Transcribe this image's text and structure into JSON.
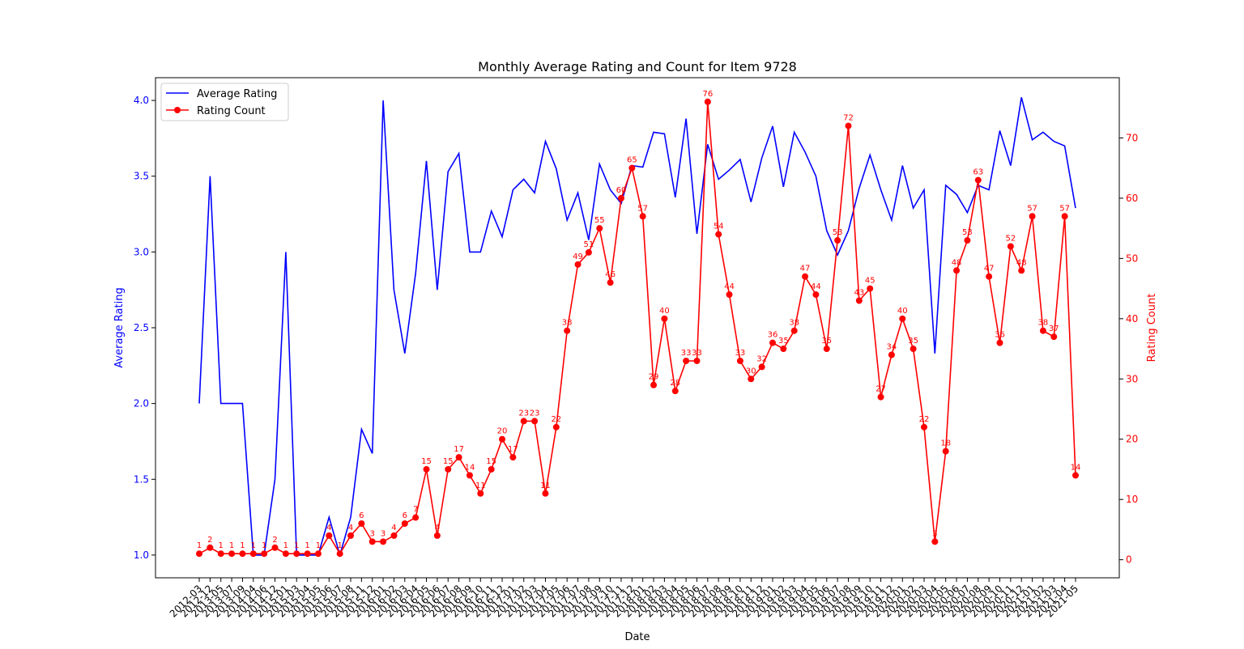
{
  "chart_data": {
    "type": "line",
    "title": "Monthly Average Rating and Count for Item 9728",
    "xlabel": "Date",
    "ylabel_left": "Average Rating",
    "ylabel_right": "Rating Count",
    "y_left_ticks": [
      1.0,
      1.5,
      2.0,
      2.5,
      3.0,
      3.5,
      4.0
    ],
    "y_right_ticks": [
      0,
      10,
      20,
      30,
      40,
      50,
      60,
      70
    ],
    "y_left_range": [
      0.85,
      4.15
    ],
    "y_right_range": [
      -3,
      80
    ],
    "grid": false,
    "legend_position": "upper-left",
    "colors": {
      "rating": "#0000ff",
      "count": "#ff0000"
    },
    "x": [
      "2012-03",
      "2012-12",
      "2013-05",
      "2013-07",
      "2013-09",
      "2014-04",
      "2014-06",
      "2014-12",
      "2015-01",
      "2015-03",
      "2015-04",
      "2015-05",
      "2015-06",
      "2015-07",
      "2015-08",
      "2015-11",
      "2015-12",
      "2016-01",
      "2016-02",
      "2016-03",
      "2016-04",
      "2016-05",
      "2016-06",
      "2016-07",
      "2016-08",
      "2016-09",
      "2016-10",
      "2016-11",
      "2016-12",
      "2017-01",
      "2017-02",
      "2017-03",
      "2017-04",
      "2017-05",
      "2017-06",
      "2017-07",
      "2017-08",
      "2017-09",
      "2017-10",
      "2017-11",
      "2017-12",
      "2018-01",
      "2018-02",
      "2018-03",
      "2018-04",
      "2018-05",
      "2018-06",
      "2018-07",
      "2018-08",
      "2018-09",
      "2018-10",
      "2018-11",
      "2018-12",
      "2019-01",
      "2019-02",
      "2019-03",
      "2019-04",
      "2019-05",
      "2019-06",
      "2019-07",
      "2019-08",
      "2019-09",
      "2019-10",
      "2019-11",
      "2019-12",
      "2020-01",
      "2020-02",
      "2020-03",
      "2020-04",
      "2020-05",
      "2020-06",
      "2020-07",
      "2020-08",
      "2020-09",
      "2020-10",
      "2020-11",
      "2020-12",
      "2021-01",
      "2021-02",
      "2021-03",
      "2021-04",
      "2021-05"
    ],
    "series": [
      {
        "name": "Average Rating",
        "axis": "left",
        "values": [
          2.0,
          3.5,
          2.0,
          2.0,
          2.0,
          1.0,
          1.0,
          1.5,
          3.0,
          1.0,
          1.0,
          1.0,
          1.25,
          1.0,
          1.25,
          1.83,
          1.67,
          4.0,
          2.75,
          2.33,
          2.86,
          3.6,
          2.75,
          3.53,
          3.65,
          3.0,
          3.0,
          3.27,
          3.1,
          3.41,
          3.48,
          3.39,
          3.73,
          3.55,
          3.21,
          3.39,
          3.08,
          3.58,
          3.41,
          3.32,
          3.57,
          3.56,
          3.79,
          3.78,
          3.36,
          3.88,
          3.12,
          3.71,
          3.48,
          3.54,
          3.61,
          3.33,
          3.62,
          3.83,
          3.43,
          3.79,
          3.66,
          3.5,
          3.14,
          2.98,
          3.14,
          3.42,
          3.64,
          3.41,
          3.21,
          3.57,
          3.29,
          3.41,
          2.33,
          3.44,
          3.38,
          3.26,
          3.44,
          3.41,
          3.8,
          3.57,
          4.02,
          3.74,
          3.79,
          3.73,
          3.7,
          3.29
        ]
      },
      {
        "name": "Rating Count",
        "axis": "right",
        "values": [
          1,
          2,
          1,
          1,
          1,
          1,
          1,
          2,
          1,
          1,
          1,
          1,
          4,
          1,
          4,
          6,
          3,
          3,
          4,
          6,
          7,
          15,
          4,
          15,
          17,
          14,
          11,
          15,
          20,
          17,
          23,
          23,
          11,
          22,
          38,
          49,
          51,
          55,
          46,
          60,
          65,
          57,
          29,
          40,
          28,
          33,
          33,
          76,
          54,
          44,
          33,
          30,
          32,
          36,
          35,
          38,
          47,
          44,
          35,
          53,
          72,
          43,
          45,
          27,
          34,
          40,
          35,
          22,
          3,
          18,
          48,
          53,
          63,
          47,
          36,
          52,
          48,
          57,
          38,
          37,
          57,
          14
        ]
      }
    ]
  }
}
